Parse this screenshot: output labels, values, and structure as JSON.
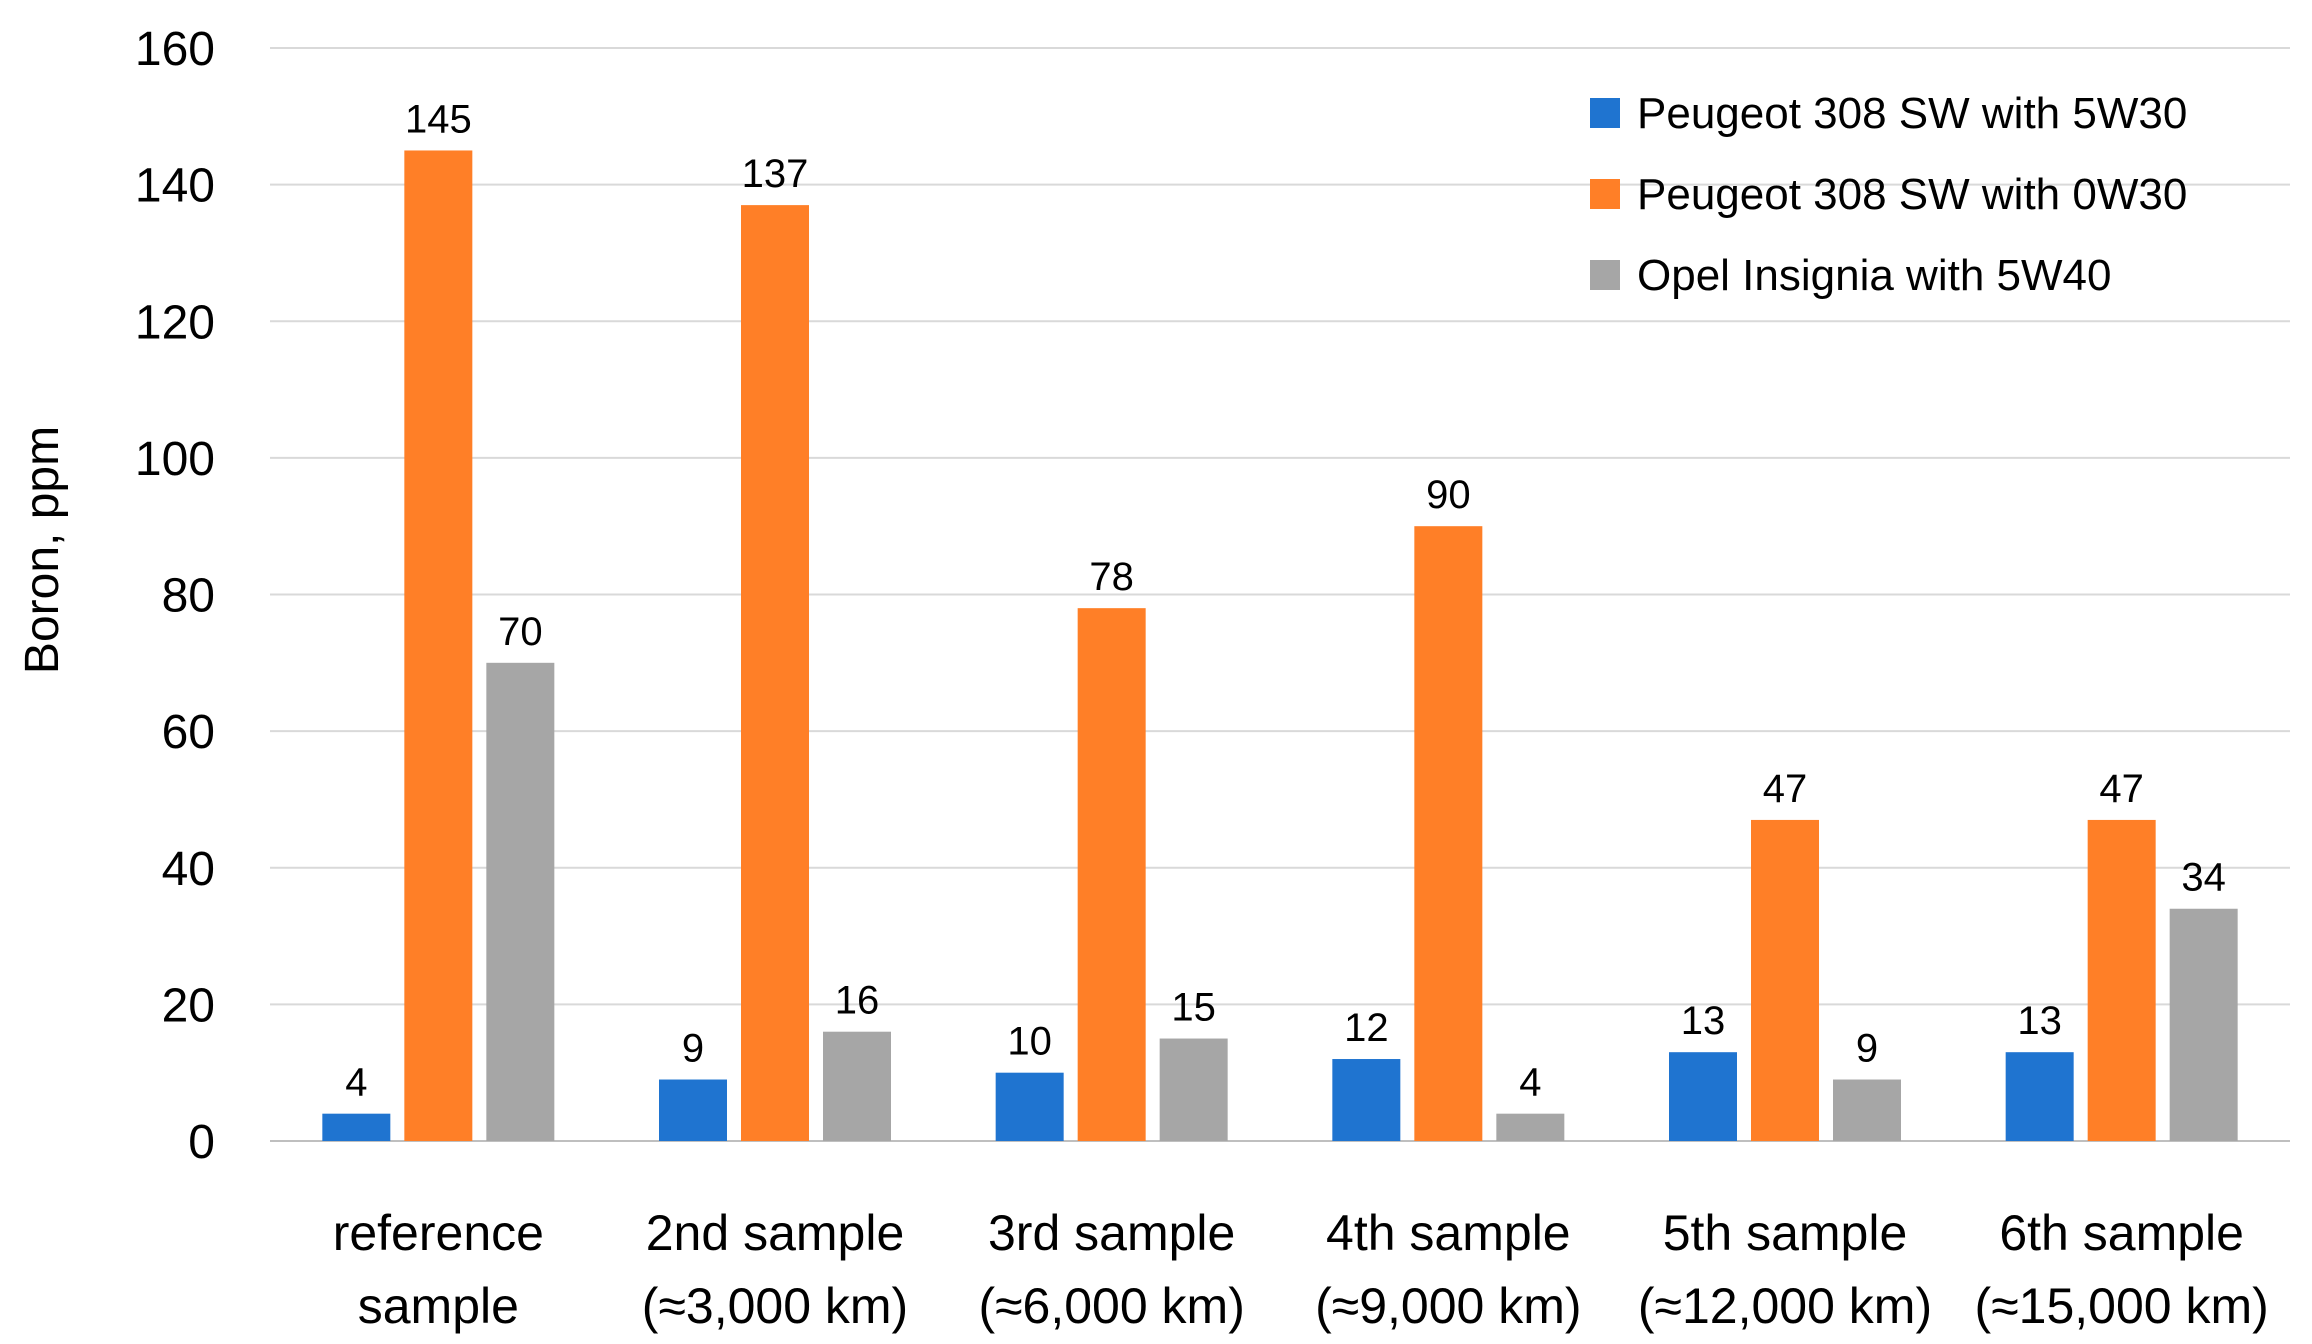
{
  "chart_data": {
    "type": "bar",
    "title": "",
    "xlabel": "",
    "ylabel": "Boron, ppm",
    "ylim": [
      0,
      160
    ],
    "yticks": [
      0,
      20,
      40,
      60,
      80,
      100,
      120,
      140,
      160
    ],
    "grid": true,
    "legend_position": "top-right",
    "categories": [
      [
        "reference",
        "sample"
      ],
      [
        "2nd sample",
        "(≈3,000 km)"
      ],
      [
        "3rd sample",
        "(≈6,000 km)"
      ],
      [
        "4th sample",
        "(≈9,000 km)"
      ],
      [
        "5th sample",
        "(≈12,000 km)"
      ],
      [
        "6th sample",
        "(≈15,000 km)"
      ]
    ],
    "series": [
      {
        "name": "Peugeot 308 SW with 5W30",
        "color": "#1f74d0",
        "values": [
          4,
          9,
          10,
          12,
          13,
          13
        ]
      },
      {
        "name": "Peugeot 308 SW with 0W30",
        "color": "#ff7f27",
        "values": [
          145,
          137,
          78,
          90,
          47,
          47
        ]
      },
      {
        "name": "Opel Insignia with 5W40",
        "color": "#a6a6a6",
        "values": [
          70,
          16,
          15,
          4,
          9,
          34
        ]
      }
    ]
  }
}
